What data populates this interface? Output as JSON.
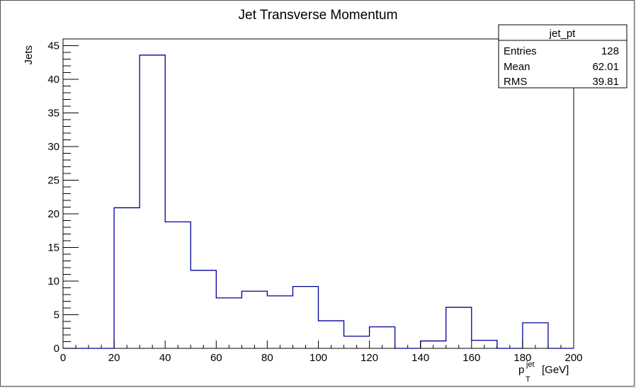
{
  "chart_data": {
    "type": "bar",
    "title": "Jet Transverse Momentum",
    "ylabel": "Jets",
    "xlabel": {
      "symbol": "p",
      "subscript": "T",
      "superscript": "jet",
      "unit": "[GeV]"
    },
    "xlim": [
      0,
      200
    ],
    "ylim": [
      0,
      46
    ],
    "x_ticks": [
      0,
      20,
      40,
      60,
      80,
      100,
      120,
      140,
      160,
      180,
      200
    ],
    "y_ticks": [
      0,
      5,
      10,
      15,
      20,
      25,
      30,
      35,
      40,
      45
    ],
    "bin_edges": [
      0,
      10,
      20,
      30,
      40,
      50,
      60,
      70,
      80,
      90,
      100,
      110,
      120,
      130,
      140,
      150,
      160,
      170,
      180,
      190,
      200
    ],
    "values": [
      0,
      0,
      20.9,
      43.6,
      18.8,
      11.6,
      7.5,
      8.5,
      7.8,
      9.2,
      4.1,
      1.8,
      3.2,
      0,
      1.1,
      6.1,
      1.2,
      0,
      3.8,
      0
    ],
    "line_color": "#000099",
    "grid": false,
    "legend": null,
    "stats_box": {
      "placement": "top-right",
      "name": "jet_pt",
      "rows": [
        {
          "label": "Entries",
          "value": "128"
        },
        {
          "label": "Mean",
          "value": "62.01"
        },
        {
          "label": "RMS",
          "value": "39.81"
        }
      ]
    }
  }
}
